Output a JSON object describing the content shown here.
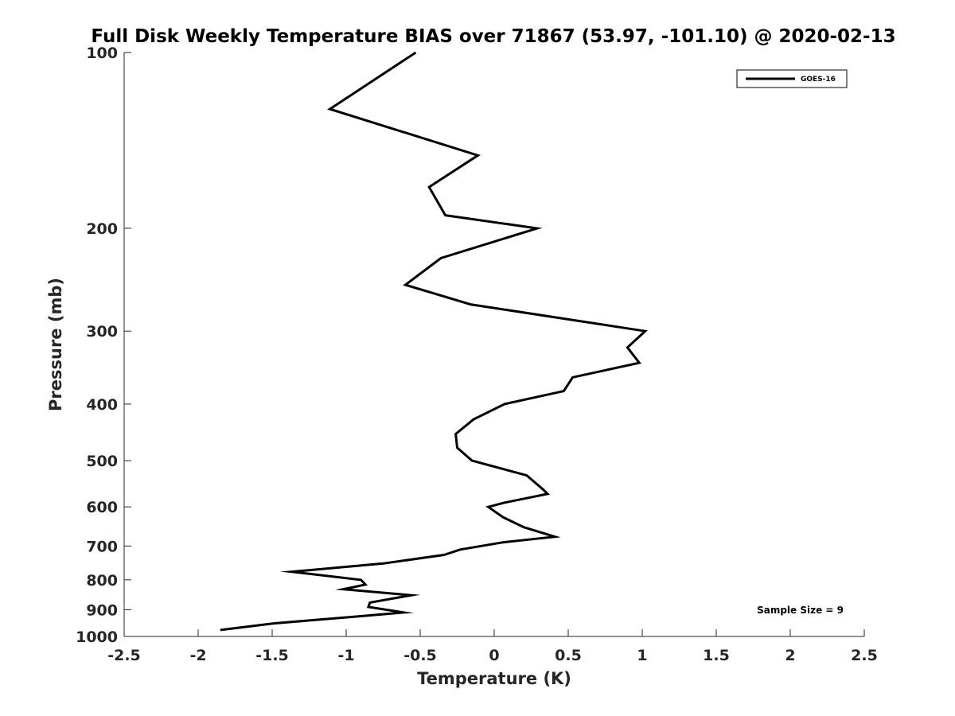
{
  "chart_data": {
    "type": "line",
    "title": "Full Disk Weekly Temperature BIAS over 71867 (53.97, -101.10) @ 2020-02-13",
    "xlabel": "Temperature (K)",
    "ylabel": "Pressure (mb)",
    "xlim": [
      -2.5,
      2.5
    ],
    "ylim": [
      100,
      1000
    ],
    "y_scale": "log",
    "y_reversed": true,
    "x_ticks": [
      -2.5,
      -2,
      -1.5,
      -1,
      -0.5,
      0,
      0.5,
      1,
      1.5,
      2,
      2.5
    ],
    "x_tick_labels": [
      "-2.5",
      "-2",
      "-1.5",
      "-1",
      "-0.5",
      "0",
      "0.5",
      "1",
      "1.5",
      "2",
      "2.5"
    ],
    "y_ticks": [
      100,
      200,
      300,
      400,
      500,
      600,
      700,
      800,
      900,
      1000
    ],
    "y_tick_labels": [
      "100",
      "200",
      "300",
      "400",
      "500",
      "600",
      "700",
      "800",
      "900",
      "1000"
    ],
    "grid": false,
    "legend_position": "top-right",
    "series": [
      {
        "name": "GOES-16",
        "color": "#000000",
        "points": [
          {
            "x": -0.53,
            "p": 100
          },
          {
            "x": -1.11,
            "p": 125
          },
          {
            "x": -0.11,
            "p": 150
          },
          {
            "x": -0.44,
            "p": 170
          },
          {
            "x": -0.33,
            "p": 190
          },
          {
            "x": 0.29,
            "p": 200
          },
          {
            "x": -0.36,
            "p": 225
          },
          {
            "x": -0.6,
            "p": 250
          },
          {
            "x": -0.16,
            "p": 270
          },
          {
            "x": 1.02,
            "p": 300
          },
          {
            "x": 0.9,
            "p": 320
          },
          {
            "x": 0.98,
            "p": 340
          },
          {
            "x": 0.53,
            "p": 360
          },
          {
            "x": 0.47,
            "p": 380
          },
          {
            "x": 0.07,
            "p": 400
          },
          {
            "x": -0.14,
            "p": 425
          },
          {
            "x": -0.26,
            "p": 450
          },
          {
            "x": -0.25,
            "p": 475
          },
          {
            "x": -0.15,
            "p": 500
          },
          {
            "x": 0.22,
            "p": 530
          },
          {
            "x": 0.33,
            "p": 560
          },
          {
            "x": 0.36,
            "p": 570
          },
          {
            "x": 0.07,
            "p": 590
          },
          {
            "x": -0.04,
            "p": 600
          },
          {
            "x": 0.06,
            "p": 625
          },
          {
            "x": 0.2,
            "p": 650
          },
          {
            "x": 0.41,
            "p": 675
          },
          {
            "x": 0.06,
            "p": 690
          },
          {
            "x": -0.23,
            "p": 710
          },
          {
            "x": -0.34,
            "p": 725
          },
          {
            "x": -0.75,
            "p": 750
          },
          {
            "x": -1.37,
            "p": 775
          },
          {
            "x": -0.9,
            "p": 800
          },
          {
            "x": -0.87,
            "p": 815
          },
          {
            "x": -1.02,
            "p": 830
          },
          {
            "x": -0.56,
            "p": 850
          },
          {
            "x": -0.84,
            "p": 875
          },
          {
            "x": -0.85,
            "p": 890
          },
          {
            "x": -0.61,
            "p": 910
          },
          {
            "x": -0.94,
            "p": 925
          },
          {
            "x": -1.49,
            "p": 950
          },
          {
            "x": -1.85,
            "p": 975
          }
        ]
      }
    ],
    "annotations": [
      {
        "text": "Sample Size = 9",
        "position": "bottom-right"
      }
    ]
  }
}
